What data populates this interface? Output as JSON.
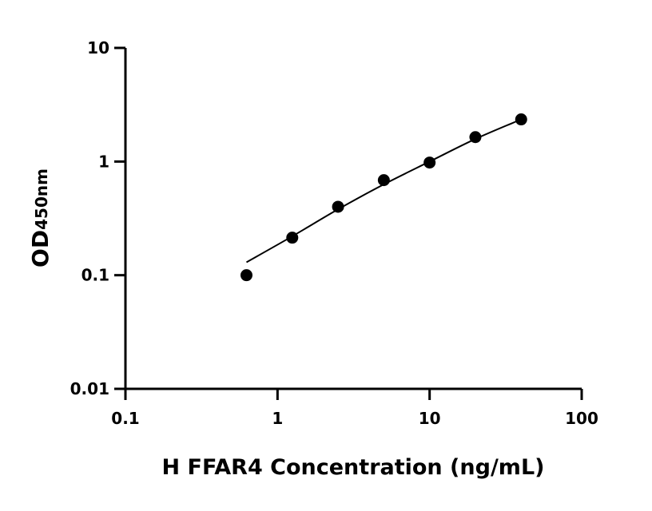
{
  "chart_data": {
    "type": "scatter",
    "xlabel": "H FFAR4 Concentration (ng/mL)",
    "ylabel": "OD",
    "ylabel_subscript": "450nm",
    "x": [
      0.625,
      1.25,
      2.5,
      5,
      10,
      20,
      40
    ],
    "values": [
      0.1,
      0.214,
      0.4,
      0.686,
      0.98,
      1.64,
      2.35
    ],
    "color": "#000000",
    "fit": {
      "x": [
        0.625,
        1.25,
        2.5,
        5,
        10,
        20,
        40
      ],
      "values": [
        0.13,
        0.22,
        0.38,
        0.63,
        1.0,
        1.58,
        2.35
      ]
    },
    "xlim": [
      0.1,
      100
    ],
    "ylim": [
      0.01,
      10
    ],
    "xticks": [
      0.1,
      1,
      10,
      100
    ],
    "yticks": [
      0.01,
      0.1,
      1,
      10
    ],
    "xscale": "log",
    "yscale": "log",
    "grid": false
  }
}
